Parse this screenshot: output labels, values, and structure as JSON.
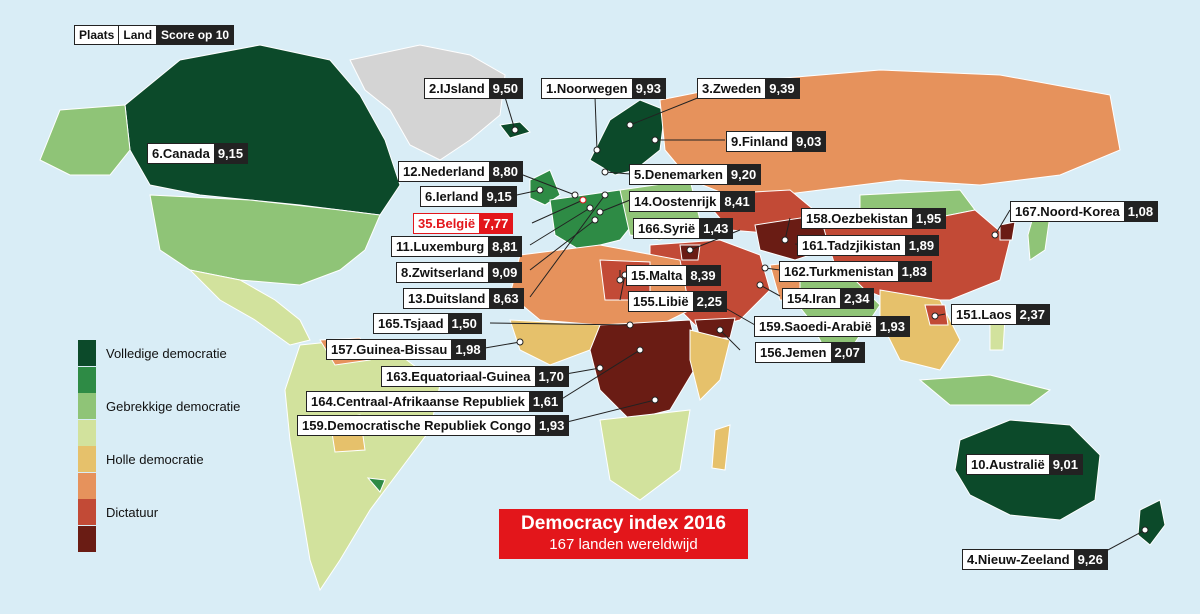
{
  "header": {
    "col_rank": "Plaats",
    "col_country": "Land",
    "col_score": "Score op 10"
  },
  "legend": [
    {
      "label": "Volledige democratie",
      "color": "#0c4a2a"
    },
    {
      "label": "",
      "color": "#2e8b45"
    },
    {
      "label": "Gebrekkige democratie",
      "color": "#8fc477"
    },
    {
      "label": "",
      "color": "#d2e29d"
    },
    {
      "label": "Holle democratie",
      "color": "#e6c16b"
    },
    {
      "label": "",
      "color": "#e6925c"
    },
    {
      "label": "Dictatuur",
      "color": "#c24a36"
    },
    {
      "label": "",
      "color": "#6a1c14"
    }
  ],
  "title": {
    "main": "Democracy index 2016",
    "sub": "167 landen wereldwijd"
  },
  "colors": {
    "ocean": "#d9edf6",
    "land_outline": "#ffffff",
    "highlight": "#e3161b",
    "label_dark": "#222222"
  },
  "countries": [
    {
      "label": "2.IJsland",
      "score": "9,50"
    },
    {
      "label": "1.Noorwegen",
      "score": "9,93"
    },
    {
      "label": "3.Zweden",
      "score": "9,39"
    },
    {
      "label": "9.Finland",
      "score": "9,03"
    },
    {
      "label": "6.Canada",
      "score": "9,15"
    },
    {
      "label": "12.Nederland",
      "score": "8,80"
    },
    {
      "label": "5.Denemarken",
      "score": "9,20"
    },
    {
      "label": "6.Ierland",
      "score": "9,15"
    },
    {
      "label": "14.Oostenrijk",
      "score": "8,41"
    },
    {
      "label": "35.België",
      "score": "7,77",
      "highlight": true
    },
    {
      "label": "158.Oezbekistan",
      "score": "1,95"
    },
    {
      "label": "167.Noord-Korea",
      "score": "1,08"
    },
    {
      "label": "166.Syrië",
      "score": "1,43"
    },
    {
      "label": "11.Luxemburg",
      "score": "8,81"
    },
    {
      "label": "161.Tadzjikistan",
      "score": "1,89"
    },
    {
      "label": "8.Zwitserland",
      "score": "9,09"
    },
    {
      "label": "15.Malta",
      "score": "8,39"
    },
    {
      "label": "162.Turkmenistan",
      "score": "1,83"
    },
    {
      "label": "13.Duitsland",
      "score": "8,63"
    },
    {
      "label": "155.Libië",
      "score": "2,25"
    },
    {
      "label": "154.Iran",
      "score": "2,34"
    },
    {
      "label": "151.Laos",
      "score": "2,37"
    },
    {
      "label": "165.Tsjaad",
      "score": "1,50"
    },
    {
      "label": "159.Saoedi-Arabië",
      "score": "1,93"
    },
    {
      "label": "157.Guinea-Bissau",
      "score": "1,98"
    },
    {
      "label": "156.Jemen",
      "score": "2,07"
    },
    {
      "label": "163.Equatoriaal-Guinea",
      "score": "1,70"
    },
    {
      "label": "164.Centraal-Afrikaanse Republiek",
      "score": "1,61"
    },
    {
      "label": "159.Democratische Republiek Congo",
      "score": "1,93"
    },
    {
      "label": "10.Australië",
      "score": "9,01"
    },
    {
      "label": "4.Nieuw-Zeeland",
      "score": "9,26"
    }
  ]
}
